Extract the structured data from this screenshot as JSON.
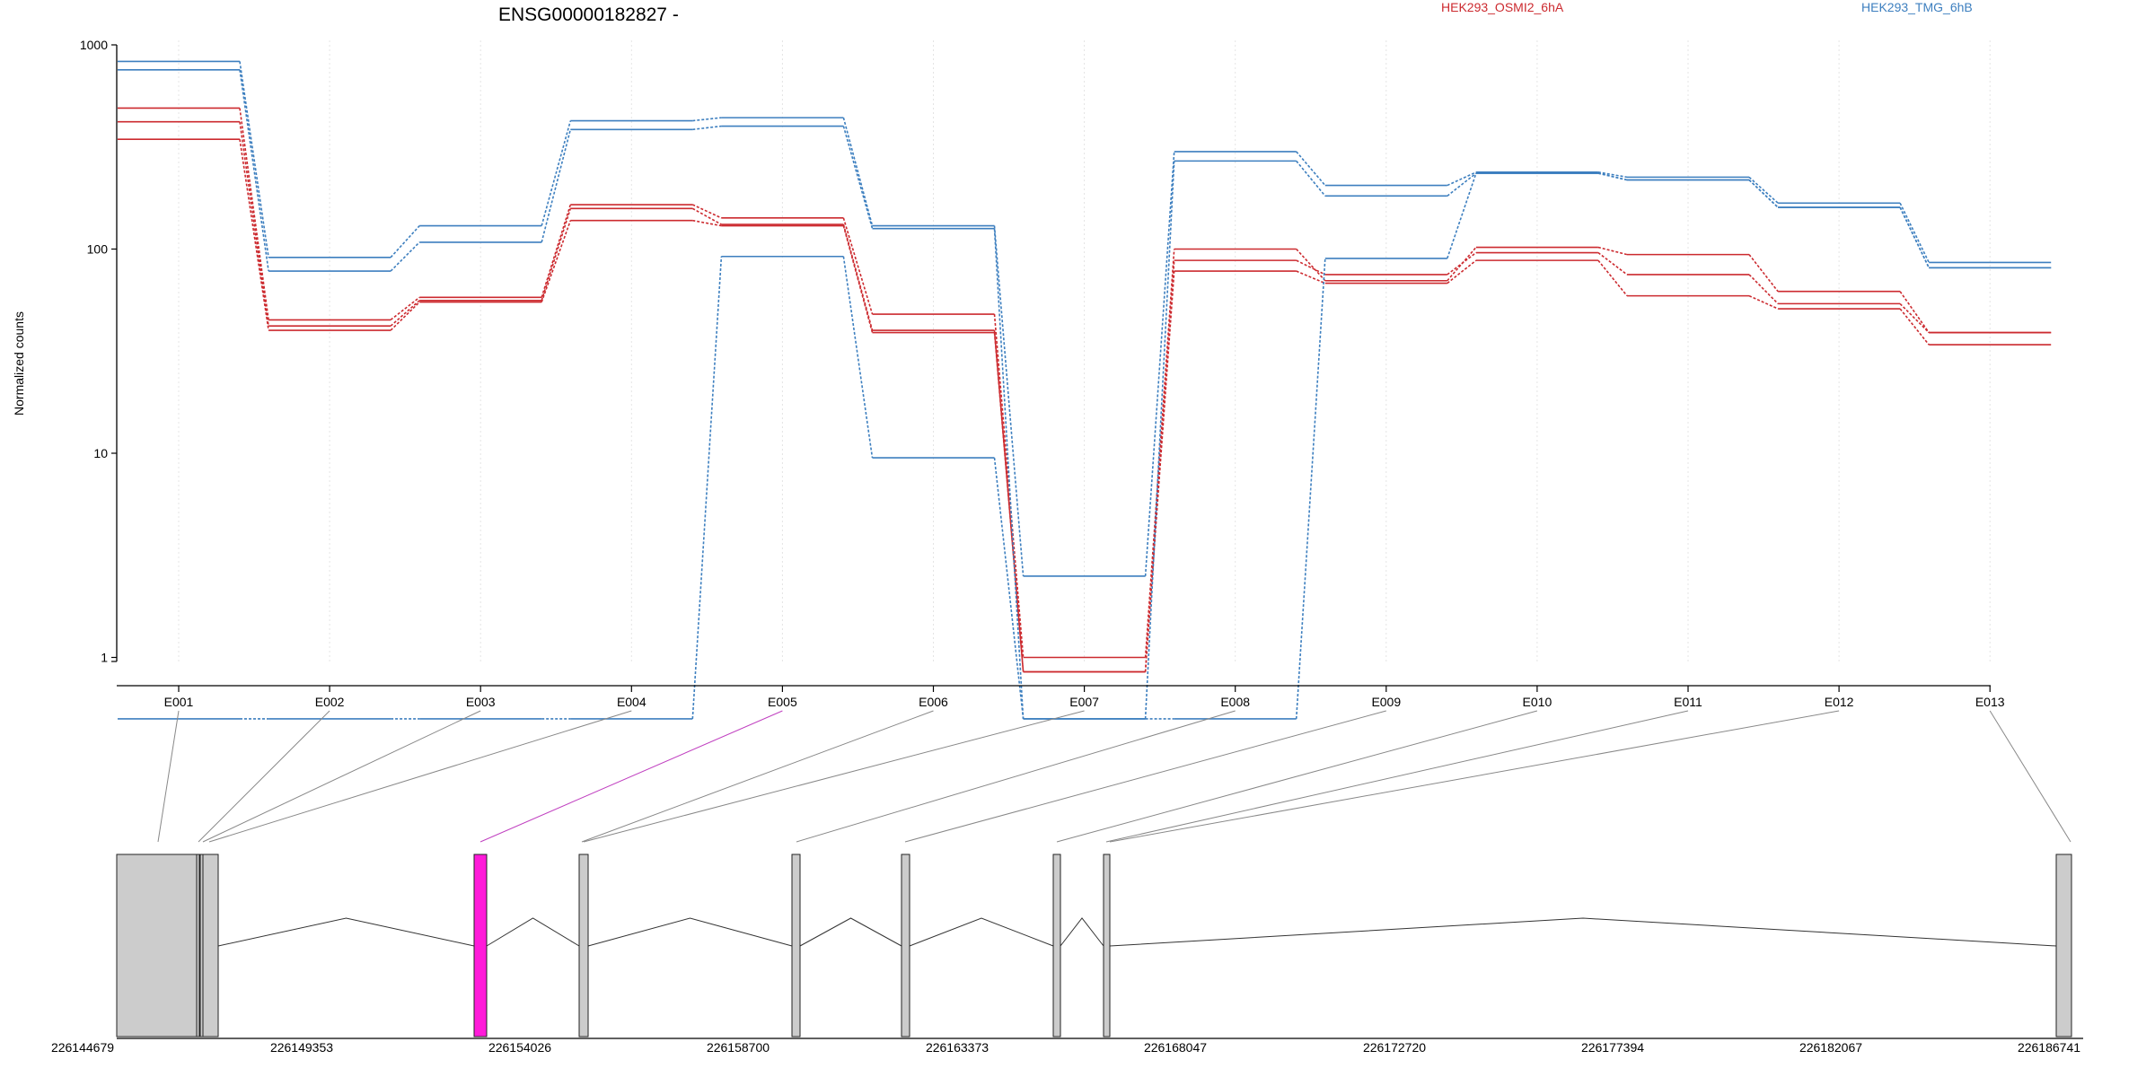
{
  "chart_data": {
    "type": "line",
    "title": "ENSG00000182827 -",
    "xlabel": "",
    "ylabel": "Normalized counts",
    "y_scale": "log",
    "y_ticks": [
      "1000",
      "100",
      "10",
      "1"
    ],
    "categories": [
      "E001",
      "E002",
      "E003",
      "E004",
      "E005",
      "E006",
      "E007",
      "E008",
      "E009",
      "E010",
      "E011",
      "E012",
      "E013"
    ],
    "legend": [
      {
        "name": "HEK293_OSMI2_6hA",
        "color": "#cc2a2f"
      },
      {
        "name": "HEK293_TMG_6hB",
        "color": "#3d7fbf"
      }
    ],
    "series": [
      {
        "group": "HEK293_OSMI2_6hA",
        "color": "#cc2a2f",
        "values": [
          490,
          45,
          58,
          165,
          142,
          48,
          1.0,
          100,
          70,
          102,
          94,
          62,
          39
        ]
      },
      {
        "group": "HEK293_OSMI2_6hA",
        "color": "#cc2a2f",
        "values": [
          420,
          42,
          56,
          158,
          132,
          40,
          0.85,
          88,
          75,
          96,
          75,
          54,
          39
        ]
      },
      {
        "group": "HEK293_OSMI2_6hA",
        "color": "#cc2a2f",
        "values": [
          345,
          40,
          55,
          138,
          130,
          39,
          0.85,
          78,
          68,
          88,
          59,
          51,
          34
        ]
      },
      {
        "group": "HEK293_TMG_6hB",
        "color": "#3d7fbf",
        "values": [
          830,
          91,
          130,
          425,
          440,
          130,
          2.5,
          300,
          205,
          238,
          225,
          168,
          86
        ]
      },
      {
        "group": "HEK293_TMG_6hB",
        "color": "#3d7fbf",
        "values": [
          755,
          78,
          108,
          385,
          400,
          126,
          0.5,
          270,
          182,
          235,
          218,
          160,
          81
        ]
      },
      {
        "group": "HEK293_TMG_6hB",
        "color": "#3d7fbf",
        "values": [
          0.5,
          0.5,
          0.5,
          0.5,
          92,
          9.5,
          0.5,
          0.5,
          90,
          235,
          218,
          160,
          81
        ]
      }
    ],
    "gene_model": {
      "axis_ticks": [
        "226144679",
        "226149353",
        "226154026",
        "226158700",
        "226163373",
        "226168047",
        "226172720",
        "226177394",
        "226182067",
        "226186741"
      ],
      "highlight_color": "#ff1ad9",
      "exon_fill": "#cccccc",
      "highlighted_exon": "E005"
    }
  }
}
